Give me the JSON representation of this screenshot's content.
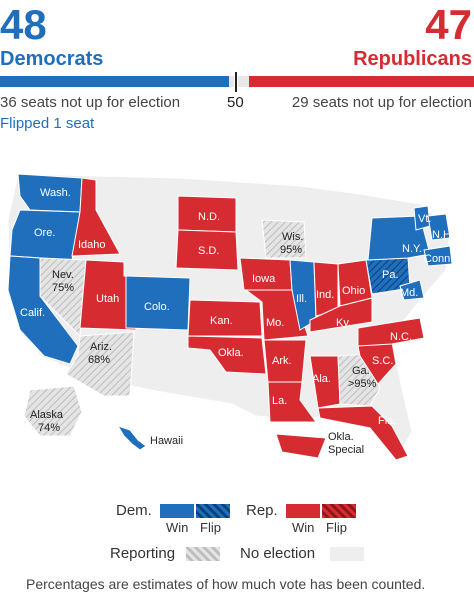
{
  "header": {
    "dem_count": "48",
    "dem_label": "Democrats",
    "rep_count": "47",
    "rep_label": "Republicans",
    "majority_marker": "50",
    "dem_not_up": "36 seats not up for election",
    "rep_not_up": "29 seats not up for election",
    "dem_flipped": "Flipped 1 seat"
  },
  "colors": {
    "dem": "#1f6fbd",
    "dem_flip": "#0d3e7a",
    "rep": "#d62b31",
    "rep_flip": "#8f1418",
    "reporting": "#c9c9c9",
    "no_election": "#eeeeee"
  },
  "map": {
    "labels": {
      "wash": "Wash.",
      "ore": "Ore.",
      "idaho": "Idaho",
      "calif": "Calif.",
      "nev": "Nev.",
      "nev_pct": "75%",
      "utah": "Utah",
      "colo": "Colo.",
      "ariz": "Ariz.",
      "ariz_pct": "68%",
      "nd": "N.D.",
      "sd": "S.D.",
      "kan": "Kan.",
      "okla": "Okla.",
      "iowa": "Iowa",
      "mo": "Mo.",
      "ark": "Ark.",
      "la": "La.",
      "wis": "Wis.",
      "wis_pct": "95%",
      "ill": "Ill.",
      "ind": "Ind.",
      "ohio": "Ohio",
      "ky": "Ky.",
      "ala": "Ala.",
      "ga": "Ga.",
      "ga_pct": ">95%",
      "fla": "Fla.",
      "nc": "N.C.",
      "sc": "S.C.",
      "pa": "Pa.",
      "ny": "N.Y.",
      "vt": "Vt.",
      "nh": "N.H.",
      "conn": "Conn.",
      "md": "Md.",
      "alaska": "Alaska",
      "alaska_pct": "74%",
      "hawaii": "Hawaii",
      "okla_special": "Okla.",
      "okla_special_2": "Special"
    }
  },
  "legend": {
    "dem": "Dem.",
    "rep": "Rep.",
    "win": "Win",
    "flip": "Flip",
    "reporting": "Reporting",
    "no_election": "No election"
  },
  "footnote": "Percentages are estimates of how much vote has been counted."
}
